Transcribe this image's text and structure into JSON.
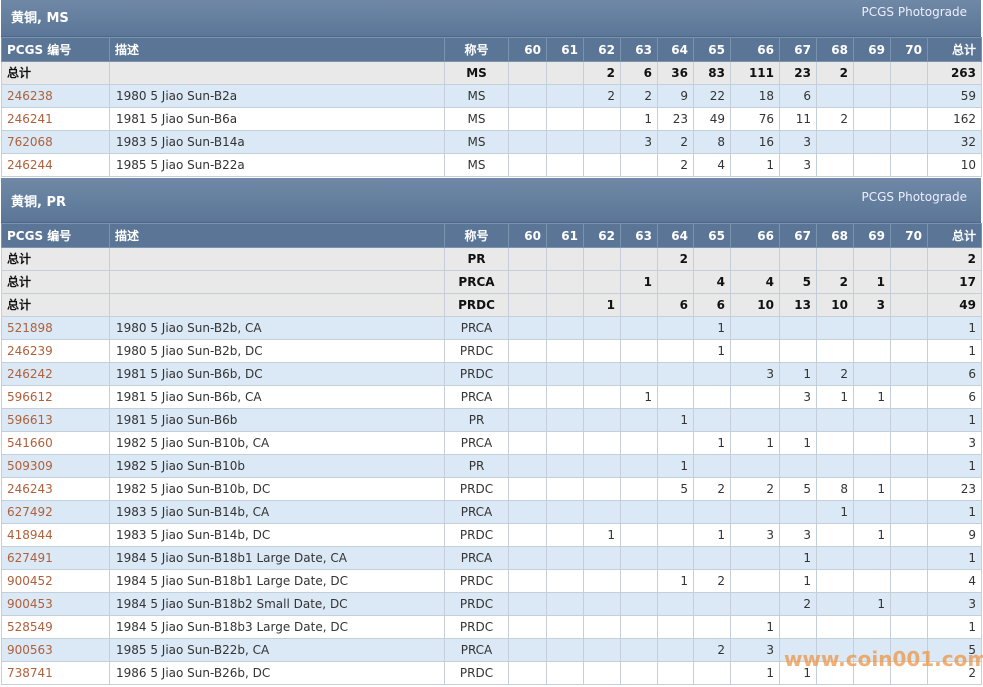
{
  "sections": [
    {
      "title": "黄铜, MS",
      "source": "PCGS Photograde",
      "columns": [
        "PCGS 编号",
        "描述",
        "称号",
        "60",
        "61",
        "62",
        "63",
        "64",
        "65",
        "66",
        "67",
        "68",
        "69",
        "70",
        "总计"
      ],
      "rows": [
        [
          "总计",
          null,
          "MS",
          null,
          null,
          2,
          6,
          36,
          83,
          111,
          23,
          2,
          null,
          null,
          263
        ],
        [
          "246238",
          "1980 5 Jiao Sun-B2a",
          "MS",
          null,
          null,
          2,
          2,
          9,
          22,
          18,
          6,
          null,
          null,
          null,
          59
        ],
        [
          "246241",
          "1981 5 Jiao Sun-B6a",
          "MS",
          null,
          null,
          null,
          1,
          23,
          49,
          76,
          11,
          2,
          null,
          null,
          162
        ],
        [
          "762068",
          "1983 5 Jiao Sun-B14a",
          "MS",
          null,
          null,
          null,
          3,
          2,
          8,
          16,
          3,
          null,
          null,
          null,
          32
        ],
        [
          "246244",
          "1985 5 Jiao Sun-B22a",
          "MS",
          null,
          null,
          null,
          null,
          2,
          4,
          1,
          3,
          null,
          null,
          null,
          10
        ]
      ]
    },
    {
      "title": "黄铜, PR",
      "source": "PCGS Photograde",
      "columns": [
        "PCGS 编号",
        "描述",
        "称号",
        "60",
        "61",
        "62",
        "63",
        "64",
        "65",
        "66",
        "67",
        "68",
        "69",
        "70",
        "总计"
      ],
      "rows": [
        [
          "总计",
          null,
          "PR",
          null,
          null,
          null,
          null,
          2,
          null,
          null,
          null,
          null,
          null,
          null,
          2
        ],
        [
          "总计",
          null,
          "PRCA",
          null,
          null,
          null,
          1,
          null,
          4,
          4,
          5,
          2,
          1,
          null,
          17
        ],
        [
          "总计",
          null,
          "PRDC",
          null,
          null,
          1,
          null,
          6,
          6,
          10,
          13,
          10,
          3,
          null,
          49
        ],
        [
          "521898",
          "1980 5 Jiao Sun-B2b, CA",
          "PRCA",
          null,
          null,
          null,
          null,
          null,
          1,
          null,
          null,
          null,
          null,
          null,
          1
        ],
        [
          "246239",
          "1980 5 Jiao Sun-B2b, DC",
          "PRDC",
          null,
          null,
          null,
          null,
          null,
          1,
          null,
          null,
          null,
          null,
          null,
          1
        ],
        [
          "246242",
          "1981 5 Jiao Sun-B6b, DC",
          "PRDC",
          null,
          null,
          null,
          null,
          null,
          null,
          3,
          1,
          2,
          null,
          null,
          6
        ],
        [
          "596612",
          "1981 5 Jiao Sun-B6b, CA",
          "PRCA",
          null,
          null,
          null,
          1,
          null,
          null,
          null,
          3,
          1,
          1,
          null,
          6
        ],
        [
          "596613",
          "1981 5 Jiao Sun-B6b",
          "PR",
          null,
          null,
          null,
          null,
          1,
          null,
          null,
          null,
          null,
          null,
          null,
          1
        ],
        [
          "541660",
          "1982 5 Jiao Sun-B10b, CA",
          "PRCA",
          null,
          null,
          null,
          null,
          null,
          1,
          1,
          1,
          null,
          null,
          null,
          3
        ],
        [
          "509309",
          "1982 5 Jiao Sun-B10b",
          "PR",
          null,
          null,
          null,
          null,
          1,
          null,
          null,
          null,
          null,
          null,
          null,
          1
        ],
        [
          "246243",
          "1982 5 Jiao Sun-B10b, DC",
          "PRDC",
          null,
          null,
          null,
          null,
          5,
          2,
          2,
          5,
          8,
          1,
          null,
          23
        ],
        [
          "627492",
          "1983 5 Jiao Sun-B14b, CA",
          "PRCA",
          null,
          null,
          null,
          null,
          null,
          null,
          null,
          null,
          1,
          null,
          null,
          1
        ],
        [
          "418944",
          "1983 5 Jiao Sun-B14b, DC",
          "PRDC",
          null,
          null,
          1,
          null,
          null,
          1,
          3,
          3,
          null,
          1,
          null,
          9
        ],
        [
          "627491",
          "1984 5 Jiao Sun-B18b1 Large Date, CA",
          "PRCA",
          null,
          null,
          null,
          null,
          null,
          null,
          null,
          1,
          null,
          null,
          null,
          1
        ],
        [
          "900452",
          "1984 5 Jiao Sun-B18b1 Large Date, DC",
          "PRDC",
          null,
          null,
          null,
          null,
          1,
          2,
          null,
          1,
          null,
          null,
          null,
          4
        ],
        [
          "900453",
          "1984 5 Jiao Sun-B18b2 Small Date, DC",
          "PRDC",
          null,
          null,
          null,
          null,
          null,
          null,
          null,
          2,
          null,
          1,
          null,
          3
        ],
        [
          "528549",
          "1984 5 Jiao Sun-B18b3 Large Date, DC",
          "PRDC",
          null,
          null,
          null,
          null,
          null,
          null,
          1,
          null,
          null,
          null,
          null,
          1
        ],
        [
          "900563",
          "1985 5 Jiao Sun-B22b, CA",
          "PRCA",
          null,
          null,
          null,
          null,
          null,
          2,
          3,
          null,
          null,
          null,
          null,
          5
        ],
        [
          "738741",
          "1986 5 Jiao Sun-B26b, DC",
          "PRDC",
          null,
          null,
          null,
          null,
          null,
          null,
          1,
          1,
          null,
          null,
          null,
          2
        ]
      ]
    }
  ],
  "watermark": "www.coin001.com"
}
